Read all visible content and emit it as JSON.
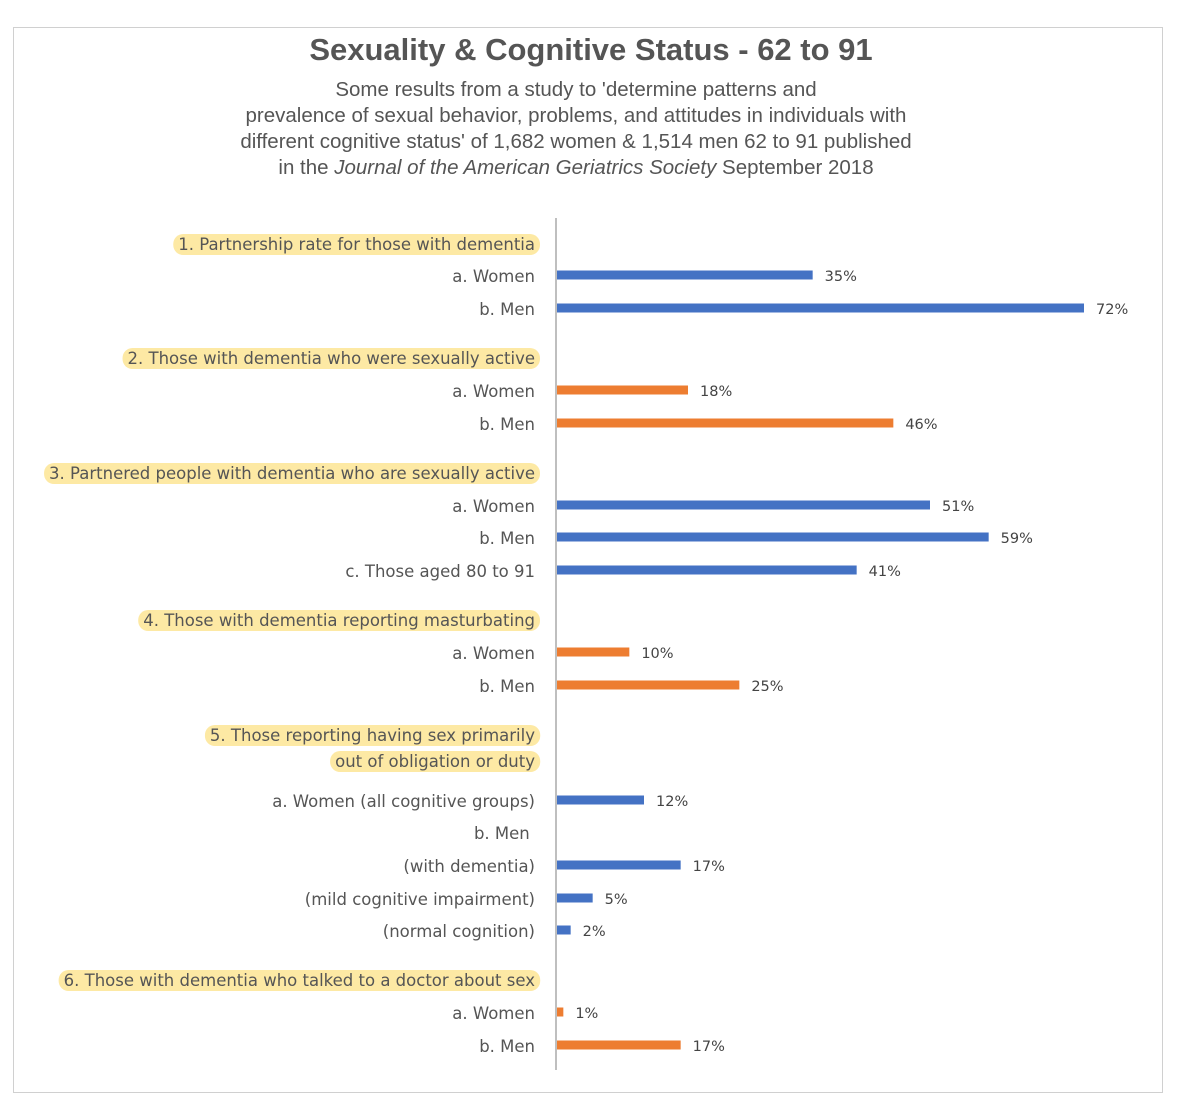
{
  "chart_data": {
    "type": "bar",
    "orientation": "horizontal",
    "title": "Sexuality & Cognitive Status - 62 to 91",
    "subtitle": [
      [
        {
          "text": "Some results from a study to 'determine patterns and"
        }
      ],
      [
        {
          "text": "prevalence of sexual behavior, problems, and attitudes in individuals with"
        }
      ],
      [
        {
          "text": "different cognitive status' of 1,682 women & 1,514 men 62 to 91 published"
        }
      ],
      [
        {
          "text": "in the "
        },
        {
          "text": "Journal of the American Geriatrics Society",
          "italic": true
        },
        {
          "text": " September 2018"
        }
      ]
    ],
    "xlim": [
      0,
      72
    ],
    "grid": false,
    "legend": "none",
    "colors": {
      "blue": "#4472c4",
      "orange": "#ed7d31",
      "highlight": "#fde9a4",
      "axis": "#bfbfbf"
    },
    "rows": [
      {
        "label": "1. Partnership rate for those with dementia",
        "header": true
      },
      {
        "label": "a. Women",
        "value": 35,
        "display": "35%",
        "color": "blue"
      },
      {
        "label": "b. Men",
        "value": 72,
        "display": "72%",
        "color": "blue"
      },
      {
        "label": "2. Those with dementia who were sexually active",
        "header": true
      },
      {
        "label": "a. Women",
        "value": 18,
        "display": "18%",
        "color": "orange"
      },
      {
        "label": "b. Men",
        "value": 46,
        "display": "46%",
        "color": "orange"
      },
      {
        "label": "3. Partnered people with dementia who are sexually active",
        "header": true
      },
      {
        "label": "a. Women",
        "value": 51,
        "display": "51%",
        "color": "blue"
      },
      {
        "label": "b. Men",
        "value": 59,
        "display": "59%",
        "color": "blue"
      },
      {
        "label": "c. Those aged 80 to 91",
        "value": 41,
        "display": "41%",
        "color": "blue"
      },
      {
        "label": "4. Those with dementia reporting masturbating",
        "header": true
      },
      {
        "label": "a. Women",
        "value": 10,
        "display": "10%",
        "color": "orange"
      },
      {
        "label": "b. Men",
        "value": 25,
        "display": "25%",
        "color": "orange"
      },
      {
        "label": [
          "5. Those reporting having sex primarily",
          "out of obligation or duty"
        ],
        "header": true
      },
      {
        "label": "a. Women (all cognitive groups)",
        "value": 12,
        "display": "12%",
        "color": "blue"
      },
      {
        "label": "b. Men",
        "sub": true
      },
      {
        "label": "(with dementia)",
        "value": 17,
        "display": "17%",
        "color": "blue"
      },
      {
        "label": "(mild cognitive impairment)",
        "value": 5,
        "display": "5%",
        "color": "blue"
      },
      {
        "label": "(normal cognition)",
        "value": 2,
        "display": "2%",
        "color": "blue"
      },
      {
        "label": "6. Those with dementia who talked to a doctor about sex",
        "header": true
      },
      {
        "label": "a. Women",
        "value": 1,
        "display": "1%",
        "color": "orange"
      },
      {
        "label": "b. Men",
        "value": 17,
        "display": "17%",
        "color": "orange"
      }
    ]
  }
}
